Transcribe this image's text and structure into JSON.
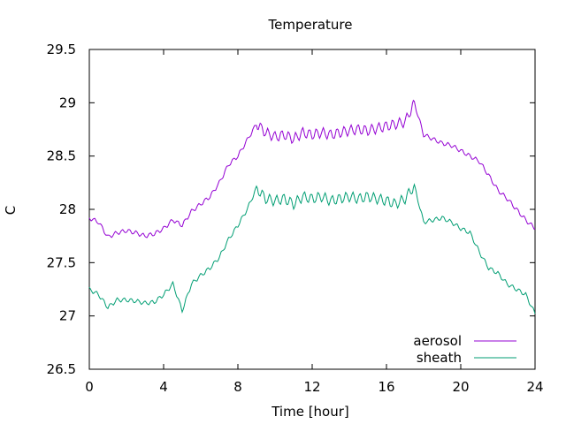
{
  "chart_data": {
    "type": "line",
    "title": "Temperature",
    "xlabel": "Time [hour]",
    "ylabel": "C",
    "xlim": [
      0,
      24
    ],
    "ylim": [
      26.5,
      29.5
    ],
    "xticks": [
      0,
      4,
      8,
      12,
      16,
      20,
      24
    ],
    "yticks": [
      26.5,
      27,
      27.5,
      28,
      28.5,
      29,
      29.5
    ],
    "xtick_labels": [
      "0",
      "4",
      "8",
      "12",
      "16",
      "20",
      "24"
    ],
    "ytick_labels": [
      "26.5",
      "27",
      "27.5",
      "28",
      "28.5",
      "29",
      "29.5"
    ],
    "grid": false,
    "legend_position": "bottom-right",
    "series": [
      {
        "name": "aerosol",
        "color": "#9400d3",
        "x": [
          0,
          0.5,
          1,
          1.5,
          2,
          2.5,
          3,
          3.5,
          4,
          4.5,
          5,
          5.5,
          6,
          6.5,
          7,
          7.5,
          8,
          8.5,
          9,
          9.5,
          10,
          10.5,
          11,
          11.5,
          12,
          12.5,
          13,
          13.5,
          14,
          14.5,
          15,
          15.5,
          16,
          16.5,
          17,
          17.5,
          18,
          18.5,
          19,
          19.5,
          20,
          20.5,
          21,
          21.5,
          22,
          22.5,
          23,
          23.5,
          24
        ],
        "y": [
          27.92,
          27.88,
          27.74,
          27.78,
          27.8,
          27.78,
          27.75,
          27.77,
          27.82,
          27.9,
          27.85,
          27.98,
          28.05,
          28.12,
          28.25,
          28.42,
          28.5,
          28.65,
          28.8,
          28.72,
          28.68,
          28.7,
          28.66,
          28.72,
          28.7,
          28.72,
          28.7,
          28.72,
          28.74,
          28.75,
          28.74,
          28.76,
          28.78,
          28.8,
          28.82,
          29.0,
          28.7,
          28.66,
          28.62,
          28.6,
          28.55,
          28.5,
          28.45,
          28.32,
          28.18,
          28.1,
          28.0,
          27.9,
          27.82
        ]
      },
      {
        "name": "sheath",
        "color": "#009e73",
        "x": [
          0,
          0.5,
          1,
          1.5,
          2,
          2.5,
          3,
          3.5,
          4,
          4.5,
          5,
          5.5,
          6,
          6.5,
          7,
          7.5,
          8,
          8.5,
          9,
          9.5,
          10,
          10.5,
          11,
          11.5,
          12,
          12.5,
          13,
          13.5,
          14,
          14.5,
          15,
          15.5,
          16,
          16.5,
          17,
          17.5,
          18,
          18.5,
          19,
          19.5,
          20,
          20.5,
          21,
          21.5,
          22,
          22.5,
          23,
          23.5,
          24
        ],
        "y": [
          27.25,
          27.2,
          27.08,
          27.15,
          27.15,
          27.14,
          27.12,
          27.13,
          27.2,
          27.3,
          27.05,
          27.3,
          27.38,
          27.45,
          27.55,
          27.72,
          27.85,
          28.0,
          28.2,
          28.1,
          28.08,
          28.1,
          28.05,
          28.12,
          28.1,
          28.12,
          28.08,
          28.1,
          28.12,
          28.1,
          28.12,
          28.1,
          28.08,
          28.05,
          28.1,
          28.22,
          27.88,
          27.9,
          27.92,
          27.88,
          27.82,
          27.78,
          27.6,
          27.45,
          27.4,
          27.3,
          27.25,
          27.2,
          27.02
        ]
      }
    ]
  }
}
